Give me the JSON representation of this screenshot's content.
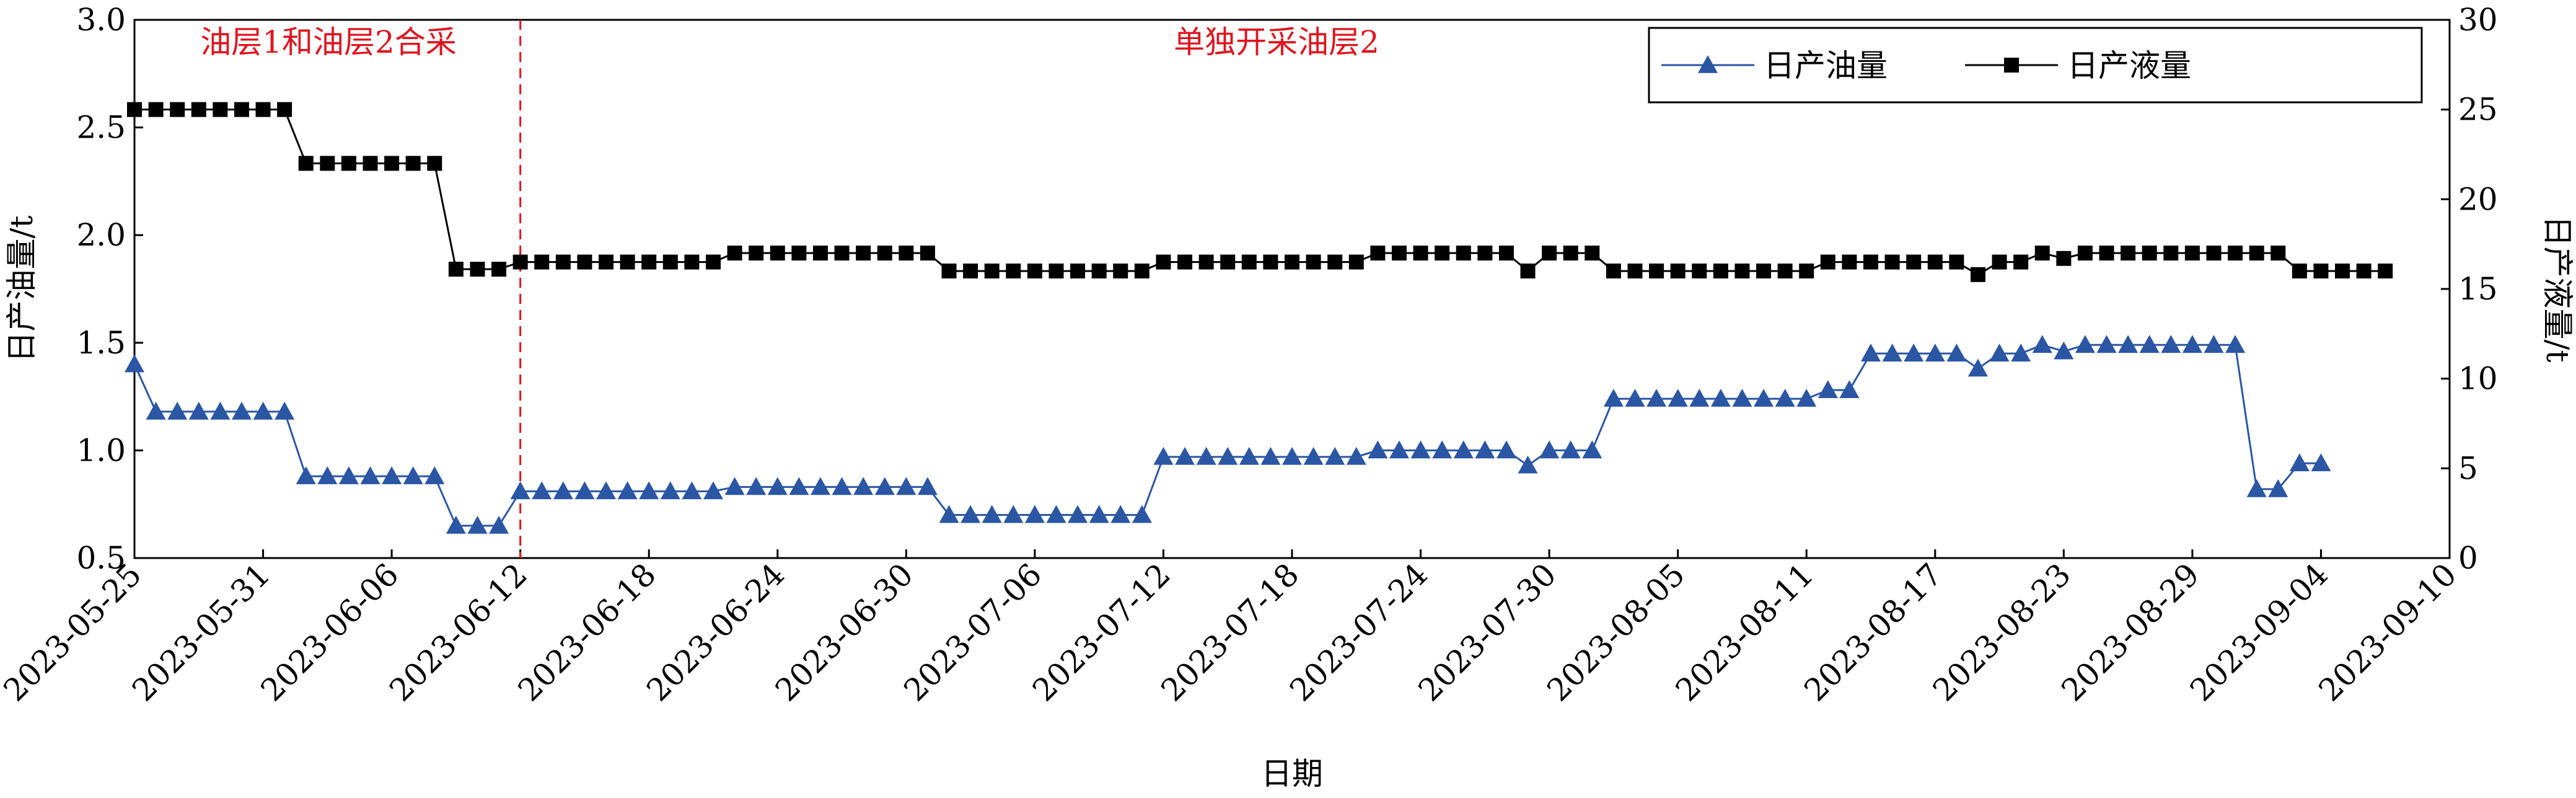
{
  "chart_data": {
    "type": "line",
    "xlabel": "日期",
    "ylabel": "日产油量/t",
    "y2label": "日产液量/t",
    "annotations": [
      {
        "text": "油层1和油层2合采"
      },
      {
        "text": "单独开采油层2"
      }
    ],
    "vline": "2023-06-12",
    "vline_color": "#e0141e",
    "legend": "upper right",
    "x": [
      "2023-05-25",
      "2023-05-26",
      "2023-05-27",
      "2023-05-28",
      "2023-05-29",
      "2023-05-30",
      "2023-05-31",
      "2023-06-01",
      "2023-06-02",
      "2023-06-03",
      "2023-06-04",
      "2023-06-05",
      "2023-06-06",
      "2023-06-07",
      "2023-06-08",
      "2023-06-09",
      "2023-06-10",
      "2023-06-11",
      "2023-06-12",
      "2023-06-13",
      "2023-06-14",
      "2023-06-15",
      "2023-06-16",
      "2023-06-17",
      "2023-06-18",
      "2023-06-19",
      "2023-06-20",
      "2023-06-21",
      "2023-06-22",
      "2023-06-23",
      "2023-06-24",
      "2023-06-25",
      "2023-06-26",
      "2023-06-27",
      "2023-06-28",
      "2023-06-29",
      "2023-06-30",
      "2023-07-01",
      "2023-07-02",
      "2023-07-03",
      "2023-07-04",
      "2023-07-05",
      "2023-07-06",
      "2023-07-07",
      "2023-07-08",
      "2023-07-09",
      "2023-07-10",
      "2023-07-11",
      "2023-07-12",
      "2023-07-13",
      "2023-07-14",
      "2023-07-15",
      "2023-07-16",
      "2023-07-17",
      "2023-07-18",
      "2023-07-19",
      "2023-07-20",
      "2023-07-21",
      "2023-07-22",
      "2023-07-23",
      "2023-07-24",
      "2023-07-25",
      "2023-07-26",
      "2023-07-27",
      "2023-07-28",
      "2023-07-29",
      "2023-07-30",
      "2023-07-31",
      "2023-08-01",
      "2023-08-02",
      "2023-08-03",
      "2023-08-04",
      "2023-08-05",
      "2023-08-06",
      "2023-08-07",
      "2023-08-08",
      "2023-08-09",
      "2023-08-10",
      "2023-08-11",
      "2023-08-12",
      "2023-08-13",
      "2023-08-14",
      "2023-08-15",
      "2023-08-16",
      "2023-08-17",
      "2023-08-18",
      "2023-08-19",
      "2023-08-20",
      "2023-08-21",
      "2023-08-22",
      "2023-08-23",
      "2023-08-24",
      "2023-08-25",
      "2023-08-26",
      "2023-08-27",
      "2023-08-28",
      "2023-08-29",
      "2023-08-30",
      "2023-08-31",
      "2023-09-01",
      "2023-09-02",
      "2023-09-03",
      "2023-09-04",
      "2023-09-05",
      "2023-09-06",
      "2023-09-07"
    ],
    "xlim": [
      "2023-05-25",
      "2023-09-10"
    ],
    "xticks": [
      "2023-05-25",
      "2023-05-31",
      "2023-06-06",
      "2023-06-12",
      "2023-06-18",
      "2023-06-24",
      "2023-06-30",
      "2023-07-06",
      "2023-07-12",
      "2023-07-18",
      "2023-07-24",
      "2023-07-30",
      "2023-08-05",
      "2023-08-11",
      "2023-08-17",
      "2023-08-23",
      "2023-08-29",
      "2023-09-04",
      "2023-09-10"
    ],
    "ylim": [
      0.5,
      3
    ],
    "yticks": [
      0.5,
      {
        "value": 1,
        "label": "1.0"
      },
      1.5,
      {
        "value": 2,
        "label": "2.0"
      },
      2.5,
      {
        "value": 3,
        "label": "3.0"
      }
    ],
    "y2lim": [
      0,
      30
    ],
    "y2ticks": [
      0,
      5,
      10,
      15,
      20,
      25,
      30
    ],
    "series": [
      {
        "name": "日产油量",
        "color": "#2a56a4",
        "marker": "triangle",
        "values": [
          1.4,
          1.18,
          1.18,
          1.18,
          1.18,
          1.18,
          1.18,
          1.18,
          0.88,
          0.88,
          0.88,
          0.88,
          0.88,
          0.88,
          0.88,
          0.65,
          0.65,
          0.65,
          0.81,
          0.81,
          0.81,
          0.81,
          0.81,
          0.81,
          0.81,
          0.81,
          0.81,
          0.81,
          0.83,
          0.83,
          0.83,
          0.83,
          0.83,
          0.83,
          0.83,
          0.83,
          0.83,
          0.83,
          0.7,
          0.7,
          0.7,
          0.7,
          0.7,
          0.7,
          0.7,
          0.7,
          0.7,
          0.7,
          0.97,
          0.97,
          0.97,
          0.97,
          0.97,
          0.97,
          0.97,
          0.97,
          0.97,
          0.97,
          1.0,
          1.0,
          1.0,
          1.0,
          1.0,
          1.0,
          1.0,
          0.93,
          1.0,
          1.0,
          1.0,
          1.24,
          1.24,
          1.24,
          1.24,
          1.24,
          1.24,
          1.24,
          1.24,
          1.24,
          1.24,
          1.28,
          1.28,
          1.45,
          1.45,
          1.45,
          1.45,
          1.45,
          1.38,
          1.45,
          1.45,
          1.49,
          1.46,
          1.49,
          1.49,
          1.49,
          1.49,
          1.49,
          1.49,
          1.49,
          1.49,
          0.82,
          0.82,
          0.94,
          0.94,
          null,
          null,
          null
        ]
      },
      {
        "name": "日产液量",
        "color": "#000000",
        "marker": "square",
        "axis": "y2",
        "values": [
          25,
          25,
          25,
          25,
          25,
          25,
          25,
          25,
          22,
          22,
          22,
          22,
          22,
          22,
          22,
          16.1,
          16.1,
          16.1,
          16.5,
          16.5,
          16.5,
          16.5,
          16.5,
          16.5,
          16.5,
          16.5,
          16.5,
          16.5,
          17,
          17,
          17,
          17,
          17,
          17,
          17,
          17,
          17,
          17,
          16,
          16,
          16,
          16,
          16,
          16,
          16,
          16,
          16,
          16,
          16.5,
          16.5,
          16.5,
          16.5,
          16.5,
          16.5,
          16.5,
          16.5,
          16.5,
          16.5,
          17,
          17,
          17,
          17,
          17,
          17,
          17,
          16,
          17,
          17,
          17,
          16,
          16,
          16,
          16,
          16,
          16,
          16,
          16,
          16,
          16,
          16.5,
          16.5,
          16.5,
          16.5,
          16.5,
          16.5,
          16.5,
          15.8,
          16.5,
          16.5,
          17,
          16.7,
          17,
          17,
          17,
          17,
          17,
          17,
          17,
          17,
          17,
          17,
          16,
          16,
          16,
          16,
          16
        ]
      }
    ]
  }
}
